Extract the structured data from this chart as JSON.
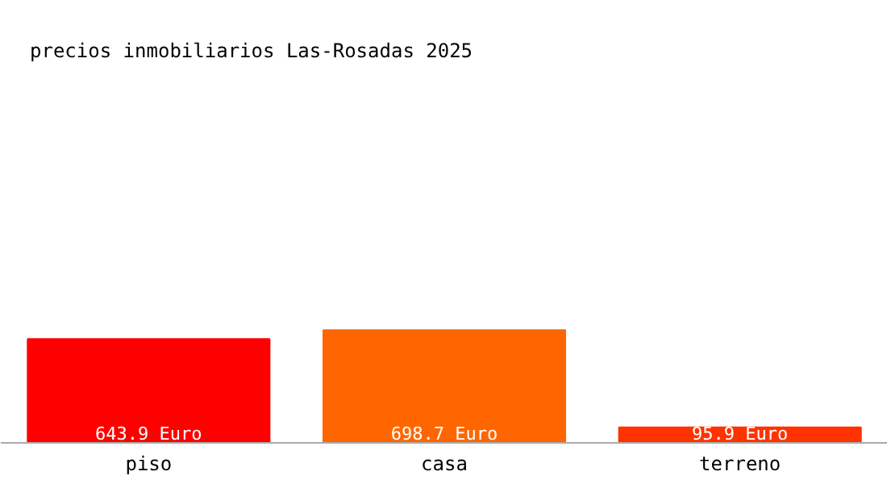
{
  "chart_data": {
    "type": "bar",
    "title": "precios inmobiliarios Las-Rosadas 2025",
    "categories": [
      "piso",
      "casa",
      "terreno"
    ],
    "values": [
      643.9,
      698.7,
      95.9
    ],
    "colors": [
      "#ff0000",
      "#ff6600",
      "#ff3300"
    ],
    "value_labels": [
      "643.9 Euro",
      "698.7 Euro",
      "95.9 Euro"
    ]
  }
}
